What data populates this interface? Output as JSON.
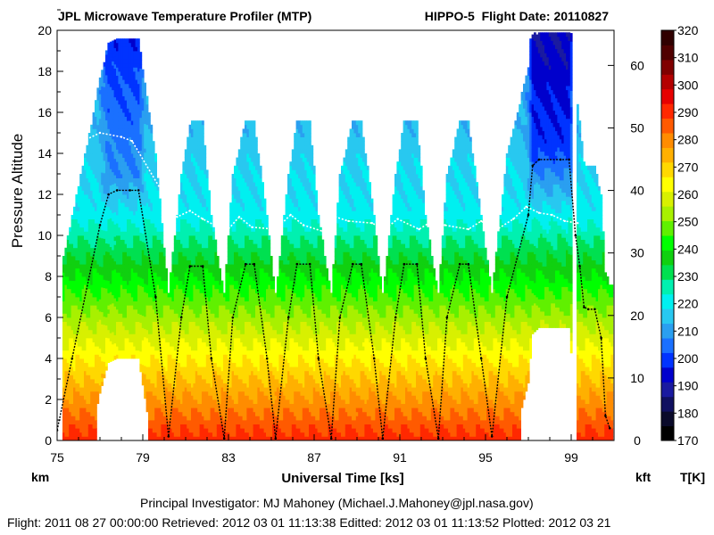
{
  "header": {
    "title": "JPL Microwave Temperature Profiler (MTP)",
    "flight": "HIPPO-5  Flight Date: 20110827"
  },
  "units": {
    "left": "km",
    "right": "kft",
    "colorbar": "T[K]"
  },
  "footer": {
    "pi": "Principal Investigator: MJ Mahoney (Michael.J.Mahoney@jpl.nasa.gov)",
    "meta": "Flight: 2011 08 27 00:00:00   Retrieved: 2012 03 01 11:13:38   Editted: 2012 03 01 11:13:52   Plotted: 2012 03 21"
  },
  "chart_data": {
    "type": "heatmap",
    "xlabel": "Universal Time [ks]",
    "ylabel": "Pressure Altitude",
    "xlim": [
      75,
      101
    ],
    "ylim": [
      0,
      20
    ],
    "xticks": [
      75,
      79,
      83,
      87,
      91,
      95,
      99
    ],
    "yticks": [
      0,
      2,
      4,
      6,
      8,
      10,
      12,
      14,
      16,
      18,
      20
    ],
    "y2ticks": [
      0,
      10,
      20,
      30,
      40,
      50,
      60
    ],
    "colorbar": {
      "ticks": [
        170,
        180,
        190,
        200,
        210,
        220,
        230,
        240,
        250,
        260,
        270,
        280,
        290,
        300,
        310,
        320
      ],
      "colors": [
        "#000000",
        "#0a0a2a",
        "#101060",
        "#1a1aa0",
        "#0000cc",
        "#0033ff",
        "#1a70ff",
        "#2a9ff0",
        "#28c8f0",
        "#00f0f0",
        "#00f0b0",
        "#00e050",
        "#10d010",
        "#00ff00",
        "#60f000",
        "#a8f000",
        "#d8f000",
        "#ffff00",
        "#ffd800",
        "#ffb000",
        "#ff8c00",
        "#ff5a00",
        "#ff2800",
        "#e60000",
        "#b40000",
        "#800000",
        "#500000",
        "#300000"
      ]
    },
    "flight_altitude_km": {
      "x": [
        75.0,
        75.7,
        77.0,
        77.4,
        77.8,
        78.4,
        78.8,
        79.6,
        80.2,
        80.8,
        81.2,
        81.8,
        82.2,
        82.8,
        83.2,
        83.8,
        84.2,
        84.8,
        85.2,
        85.8,
        86.2,
        86.8,
        87.2,
        87.8,
        88.2,
        88.8,
        89.2,
        89.8,
        90.2,
        90.8,
        91.2,
        91.8,
        92.2,
        92.8,
        93.2,
        93.8,
        94.2,
        94.8,
        95.3,
        96.0,
        97.0,
        97.2,
        97.5,
        98.5,
        98.9,
        99.2,
        99.4,
        99.6,
        99.8,
        100.1,
        100.4,
        100.6,
        100.8
      ],
      "y": [
        0.5,
        4.0,
        10.5,
        12.0,
        12.2,
        12.2,
        12.2,
        7.0,
        0.2,
        6.0,
        8.5,
        8.5,
        4.0,
        0.1,
        6.0,
        8.6,
        8.6,
        4.0,
        0.1,
        6.0,
        8.6,
        8.6,
        4.0,
        0.1,
        6.0,
        8.6,
        8.6,
        4.0,
        0.1,
        6.0,
        8.6,
        8.6,
        4.0,
        0.1,
        6.0,
        8.6,
        8.6,
        4.0,
        0.2,
        7.0,
        11.0,
        13.4,
        13.7,
        13.7,
        13.7,
        10.0,
        8.5,
        6.5,
        6.4,
        6.4,
        5.0,
        1.2,
        0.6
      ]
    },
    "tropopause_km": {
      "x": [
        76.2,
        77.0,
        78.0,
        78.5,
        80.6,
        81.2,
        81.8,
        82.9,
        83.5,
        84.1,
        85.2,
        85.9,
        86.5,
        87.4,
        88.0,
        88.6,
        89.7,
        90.3,
        90.9,
        91.9,
        92.5,
        93.1,
        94.2,
        94.8,
        95.4,
        96.3,
        96.9,
        97.5,
        98.1,
        98.7,
        99.3
      ],
      "y": [
        14.6,
        15.0,
        14.8,
        14.6,
        10.9,
        11.2,
        10.8,
        10.2,
        10.9,
        10.4,
        10.3,
        11.0,
        10.5,
        10.2,
        10.9,
        10.7,
        10.6,
        10.3,
        10.8,
        10.3,
        10.7,
        10.5,
        10.3,
        10.7,
        10.2,
        10.8,
        11.4,
        11.1,
        11.0,
        10.7,
        10.6
      ]
    }
  }
}
